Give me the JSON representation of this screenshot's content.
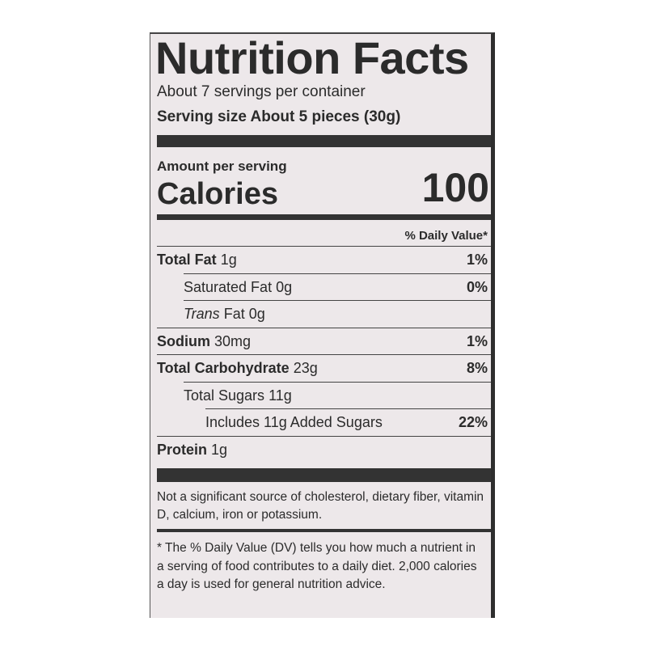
{
  "title": "Nutrition Facts",
  "servings": "About 7 servings per container",
  "serving_size": {
    "label": "Serving size",
    "value": "About 5 pieces (30g)"
  },
  "amount_per_serving": "Amount per serving",
  "calories": {
    "label": "Calories",
    "value": "100"
  },
  "daily_value_header": "% Daily Value*",
  "nutrients": [
    {
      "name": "Total Fat",
      "amount": "1g",
      "dv": "1%",
      "sub": [
        {
          "name": "Saturated Fat",
          "amount": "0g",
          "dv": "0%"
        },
        {
          "prefix": "Trans",
          "name": "Fat",
          "amount": "0g"
        }
      ]
    },
    {
      "name": "Sodium",
      "amount": "30mg",
      "dv": "1%"
    },
    {
      "name": "Total Carbohydrate",
      "amount": "23g",
      "dv": "8%",
      "sub": [
        {
          "name": "Total Sugars",
          "amount": "11g",
          "sub": [
            {
              "name": "Includes 11g Added Sugars",
              "dv": "22%"
            }
          ]
        }
      ]
    },
    {
      "name": "Protein",
      "amount": "1g"
    }
  ],
  "note": "Not a significant source of cholesterol, dietary fiber, vitamin D, calcium, iron or potassium.",
  "footnote": "* The % Daily Value (DV) tells you how much a nutrient in a serving of food contributes to a daily diet. 2,000 calories a day is used for general nutrition advice."
}
